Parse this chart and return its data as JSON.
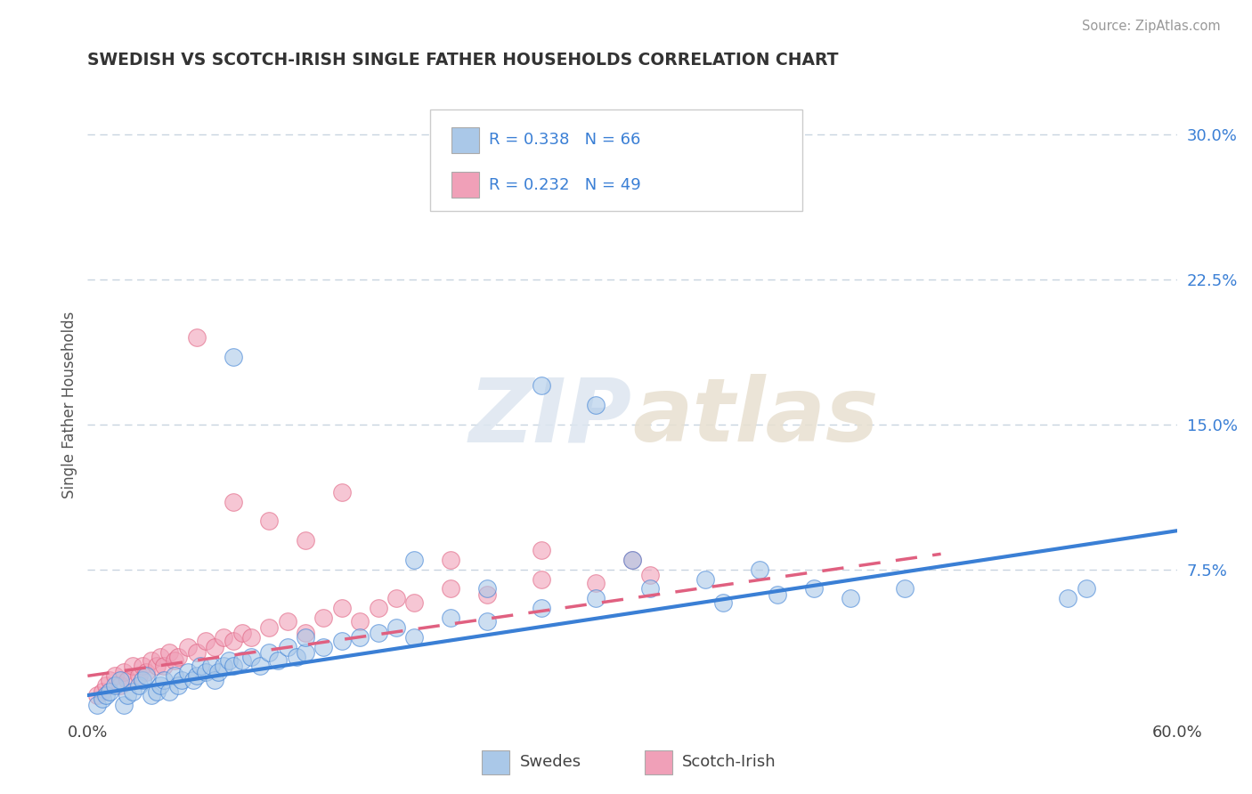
{
  "title": "SWEDISH VS SCOTCH-IRISH SINGLE FATHER HOUSEHOLDS CORRELATION CHART",
  "source": "Source: ZipAtlas.com",
  "ylabel": "Single Father Households",
  "xlim": [
    0.0,
    0.6
  ],
  "ylim": [
    0.0,
    0.32
  ],
  "y_ticks_right": [
    0.075,
    0.15,
    0.225,
    0.3
  ],
  "y_tick_labels_right": [
    "7.5%",
    "15.0%",
    "22.5%",
    "30.0%"
  ],
  "swedish_color": "#aac8e8",
  "scotch_color": "#f0a0b8",
  "swedish_line_color": "#3a7fd5",
  "scotch_line_color": "#e06080",
  "legend_label_swedish": "Swedes",
  "legend_label_scotch": "Scotch-Irish",
  "watermark_text": "ZIPatlas",
  "background_color": "#ffffff",
  "grid_color": "#c8d4e0",
  "swedish_x": [
    0.005,
    0.008,
    0.01,
    0.012,
    0.015,
    0.018,
    0.02,
    0.022,
    0.025,
    0.028,
    0.03,
    0.032,
    0.035,
    0.038,
    0.04,
    0.042,
    0.045,
    0.048,
    0.05,
    0.052,
    0.055,
    0.058,
    0.06,
    0.062,
    0.065,
    0.068,
    0.07,
    0.072,
    0.075,
    0.078,
    0.08,
    0.085,
    0.09,
    0.095,
    0.1,
    0.105,
    0.11,
    0.115,
    0.12,
    0.13,
    0.14,
    0.15,
    0.16,
    0.17,
    0.18,
    0.2,
    0.22,
    0.25,
    0.28,
    0.31,
    0.35,
    0.38,
    0.4,
    0.42,
    0.45,
    0.08,
    0.22,
    0.3,
    0.34,
    0.37,
    0.54,
    0.55,
    0.25,
    0.28,
    0.18,
    0.12
  ],
  "swedish_y": [
    0.005,
    0.008,
    0.01,
    0.012,
    0.015,
    0.018,
    0.005,
    0.01,
    0.012,
    0.015,
    0.018,
    0.02,
    0.01,
    0.012,
    0.015,
    0.018,
    0.012,
    0.02,
    0.015,
    0.018,
    0.022,
    0.018,
    0.02,
    0.025,
    0.022,
    0.025,
    0.018,
    0.022,
    0.025,
    0.028,
    0.025,
    0.028,
    0.03,
    0.025,
    0.032,
    0.028,
    0.035,
    0.03,
    0.032,
    0.035,
    0.038,
    0.04,
    0.042,
    0.045,
    0.04,
    0.05,
    0.048,
    0.055,
    0.06,
    0.065,
    0.058,
    0.062,
    0.065,
    0.06,
    0.065,
    0.185,
    0.065,
    0.08,
    0.07,
    0.075,
    0.06,
    0.065,
    0.17,
    0.16,
    0.08,
    0.04
  ],
  "scotch_x": [
    0.005,
    0.008,
    0.01,
    0.012,
    0.015,
    0.018,
    0.02,
    0.022,
    0.025,
    0.028,
    0.03,
    0.032,
    0.035,
    0.038,
    0.04,
    0.042,
    0.045,
    0.048,
    0.05,
    0.055,
    0.06,
    0.065,
    0.07,
    0.075,
    0.08,
    0.085,
    0.09,
    0.1,
    0.11,
    0.12,
    0.13,
    0.14,
    0.15,
    0.16,
    0.17,
    0.18,
    0.2,
    0.22,
    0.25,
    0.28,
    0.31,
    0.06,
    0.08,
    0.1,
    0.12,
    0.14,
    0.2,
    0.25,
    0.3
  ],
  "scotch_y": [
    0.01,
    0.012,
    0.015,
    0.018,
    0.02,
    0.015,
    0.022,
    0.018,
    0.025,
    0.02,
    0.025,
    0.022,
    0.028,
    0.025,
    0.03,
    0.025,
    0.032,
    0.028,
    0.03,
    0.035,
    0.032,
    0.038,
    0.035,
    0.04,
    0.038,
    0.042,
    0.04,
    0.045,
    0.048,
    0.042,
    0.05,
    0.055,
    0.048,
    0.055,
    0.06,
    0.058,
    0.065,
    0.062,
    0.07,
    0.068,
    0.072,
    0.195,
    0.11,
    0.1,
    0.09,
    0.115,
    0.08,
    0.085,
    0.08
  ],
  "swedish_trend_x": [
    0.0,
    0.6
  ],
  "swedish_trend_y": [
    0.01,
    0.095
  ],
  "scotch_trend_x": [
    0.0,
    0.47
  ],
  "scotch_trend_y": [
    0.02,
    0.083
  ]
}
